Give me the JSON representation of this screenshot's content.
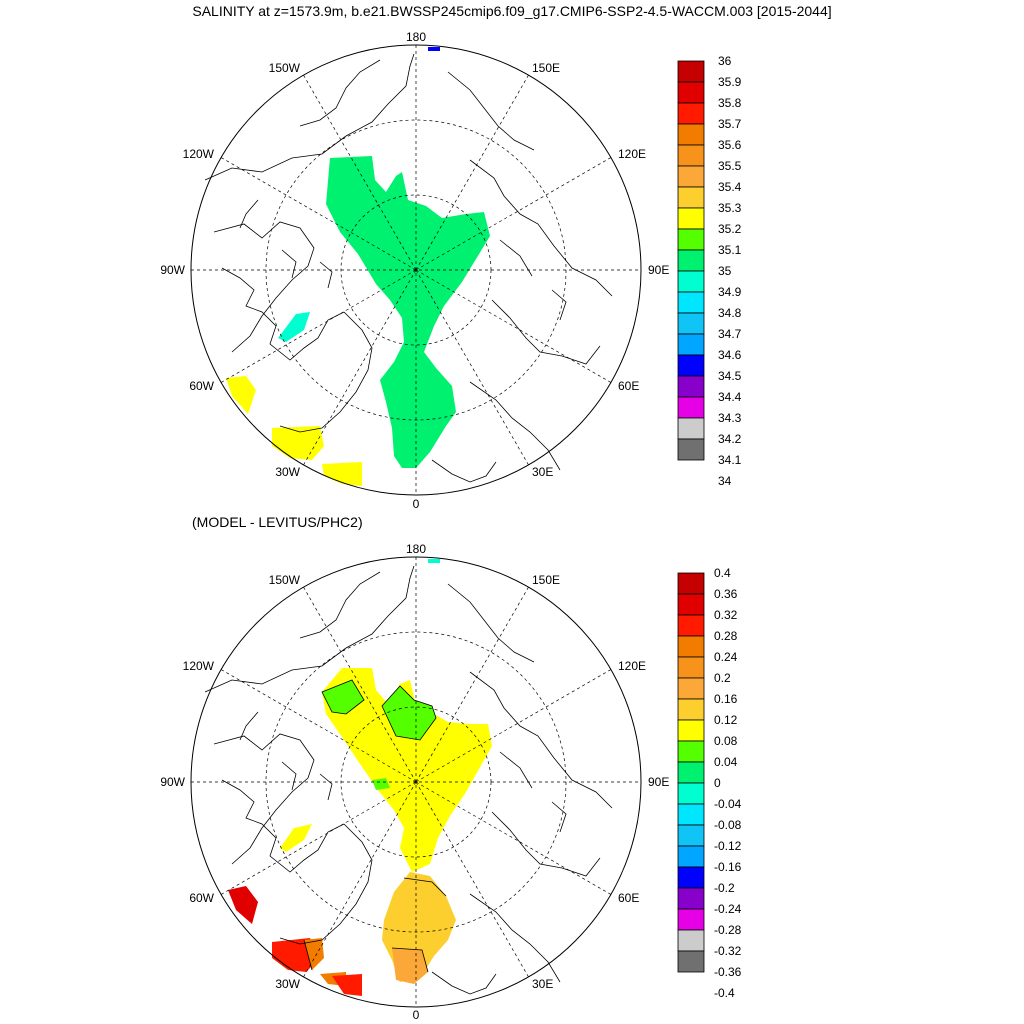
{
  "page": {
    "title": "SALINITY at z=1573.9m, b.e21.BWSSP245cmip6.f09_g17.CMIP6-SSP2-4.5-WACCM.003 [2015-2044]",
    "subtitle": "(MODEL - LEVITUS/PHC2)"
  },
  "maps": [
    {
      "id": "salinity",
      "lon_labels": {
        "top": "180",
        "bottom": "0",
        "left": "90W",
        "right": "90E",
        "nw_upper": "150W",
        "ne_upper": "150E",
        "nw_lower": "120W",
        "ne_lower": "120E",
        "sw_upper": "60W",
        "se_upper": "60E",
        "sw_lower": "30W",
        "se_lower": "30E"
      },
      "legend": {
        "labels": [
          "36",
          "35.9",
          "35.8",
          "35.7",
          "35.6",
          "35.5",
          "35.4",
          "35.3",
          "35.2",
          "35.1",
          "35",
          "34.9",
          "34.8",
          "34.7",
          "34.6",
          "34.5",
          "34.4",
          "34.3",
          "34.2",
          "34.1",
          "34"
        ],
        "colors": [
          "#c40000",
          "#e00000",
          "#ff1a00",
          "#f27c00",
          "#f7931a",
          "#fca839",
          "#fccf2e",
          "#ffff00",
          "#54ff00",
          "#00f070",
          "#00ffd0",
          "#00e6ff",
          "#11c4f6",
          "#00a6ff",
          "#0000ff",
          "#8800cc",
          "#e600e6",
          "#cccccc",
          "#707070"
        ]
      }
    },
    {
      "id": "difference",
      "lon_labels": {
        "top": "180",
        "bottom": "0",
        "left": "90W",
        "right": "90E",
        "nw_upper": "150W",
        "ne_upper": "150E",
        "nw_lower": "120W",
        "ne_lower": "120E",
        "sw_upper": "60W",
        "se_upper": "60E",
        "sw_lower": "30W",
        "se_lower": "30E"
      },
      "legend": {
        "labels": [
          "0.4",
          "0.36",
          "0.32",
          "0.28",
          "0.24",
          "0.2",
          "0.16",
          "0.12",
          "0.08",
          "0.04",
          "0",
          "-0.04",
          "-0.08",
          "-0.12",
          "-0.16",
          "-0.2",
          "-0.24",
          "-0.28",
          "-0.32",
          "-0.36",
          "-0.4"
        ],
        "colors": [
          "#c40000",
          "#e00000",
          "#ff1a00",
          "#f27c00",
          "#f7931a",
          "#fca839",
          "#fccf2e",
          "#ffff00",
          "#54ff00",
          "#00f070",
          "#00ffd0",
          "#00e6ff",
          "#11c4f6",
          "#00a6ff",
          "#0000ff",
          "#8800cc",
          "#e600e6",
          "#cccccc",
          "#707070"
        ]
      }
    }
  ]
}
